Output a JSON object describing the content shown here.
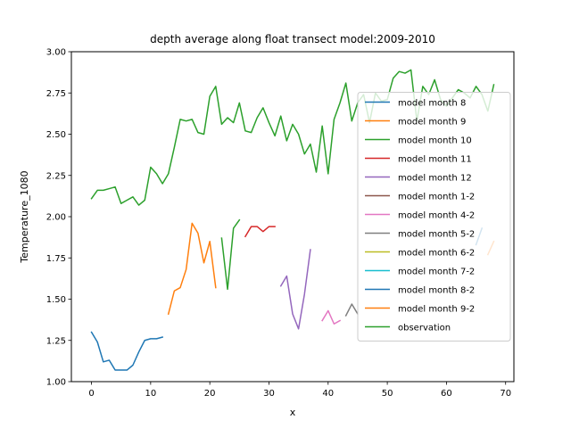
{
  "chart_data": {
    "type": "line",
    "title": "depth average along float transect model:2009-2010",
    "xlabel": "x",
    "ylabel": "Temperature_1080",
    "xlim": [
      -3.4,
      71.4
    ],
    "ylim": [
      1.0,
      3.0
    ],
    "xticks": [
      0,
      10,
      20,
      30,
      40,
      50,
      60,
      70
    ],
    "yticks": [
      1.0,
      1.25,
      1.5,
      1.75,
      2.0,
      2.25,
      2.5,
      2.75,
      3.0
    ],
    "ytick_labels": [
      "1.00",
      "1.25",
      "1.50",
      "1.75",
      "2.00",
      "2.25",
      "2.50",
      "2.75",
      "3.00"
    ],
    "grid": false,
    "legend_position": "center-right",
    "series": [
      {
        "name": "model month 8",
        "color": "#1f77b4",
        "x": [
          0,
          1,
          2,
          3,
          4,
          5,
          6,
          7,
          8,
          9,
          10,
          11,
          12
        ],
        "y": [
          1.3,
          1.24,
          1.12,
          1.13,
          1.07,
          1.07,
          1.07,
          1.1,
          1.18,
          1.25,
          1.26,
          1.26,
          1.27
        ]
      },
      {
        "name": "model month 9",
        "color": "#ff7f0e",
        "x": [
          13,
          14,
          15,
          16,
          17,
          18,
          19,
          20,
          21
        ],
        "y": [
          1.41,
          1.55,
          1.57,
          1.68,
          1.96,
          1.9,
          1.72,
          1.85,
          1.57
        ]
      },
      {
        "name": "model month 10",
        "color": "#2ca02c",
        "x": [
          22,
          23,
          24,
          25
        ],
        "y": [
          1.87,
          1.56,
          1.93,
          1.98
        ]
      },
      {
        "name": "model month 11",
        "color": "#d62728",
        "x": [
          26,
          27,
          28,
          29,
          30,
          31
        ],
        "y": [
          1.88,
          1.94,
          1.94,
          1.91,
          1.94,
          1.94
        ]
      },
      {
        "name": "model month 12",
        "color": "#9467bd",
        "x": [
          32,
          33,
          34,
          35,
          36,
          37
        ],
        "y": [
          1.58,
          1.64,
          1.41,
          1.32,
          1.53,
          1.8
        ]
      },
      {
        "name": "model month 1-2",
        "color": "#8c564b",
        "x": [],
        "y": []
      },
      {
        "name": "model month 4-2",
        "color": "#e377c2",
        "x": [
          39,
          40,
          41,
          42
        ],
        "y": [
          1.37,
          1.43,
          1.35,
          1.37
        ]
      },
      {
        "name": "model month 5-2",
        "color": "#7f7f7f",
        "x": [
          43,
          44,
          45
        ],
        "y": [
          1.4,
          1.47,
          1.41
        ]
      },
      {
        "name": "model month 6-2",
        "color": "#bcbd22",
        "x": [],
        "y": []
      },
      {
        "name": "model month 7-2",
        "color": "#17becf",
        "x": [],
        "y": []
      },
      {
        "name": "model month 8-2",
        "color": "#1f77b4",
        "x": [
          65,
          66
        ],
        "y": [
          1.83,
          1.93
        ]
      },
      {
        "name": "model month 9-2",
        "color": "#ff7f0e",
        "x": [
          67,
          68
        ],
        "y": [
          1.77,
          1.85
        ]
      },
      {
        "name": "observation",
        "color": "#2ca02c",
        "x": [
          0,
          1,
          2,
          3,
          4,
          5,
          6,
          7,
          8,
          9,
          10,
          11,
          12,
          13,
          14,
          15,
          16,
          17,
          18,
          19,
          20,
          21,
          22,
          23,
          24,
          25,
          26,
          27,
          28,
          29,
          30,
          31,
          32,
          33,
          34,
          35,
          36,
          37,
          38,
          39,
          40,
          41,
          42,
          43,
          44,
          45,
          46,
          47,
          48,
          49,
          50,
          51,
          52,
          53,
          54,
          55,
          56,
          57,
          58,
          59,
          60,
          61,
          62,
          63,
          64,
          65,
          66,
          67,
          68
        ],
        "y": [
          2.11,
          2.16,
          2.16,
          2.17,
          2.18,
          2.08,
          2.1,
          2.12,
          2.07,
          2.1,
          2.3,
          2.26,
          2.2,
          2.26,
          2.42,
          2.59,
          2.58,
          2.59,
          2.51,
          2.5,
          2.73,
          2.79,
          2.56,
          2.6,
          2.57,
          2.69,
          2.52,
          2.51,
          2.6,
          2.66,
          2.57,
          2.49,
          2.61,
          2.46,
          2.56,
          2.5,
          2.38,
          2.44,
          2.27,
          2.55,
          2.26,
          2.59,
          2.69,
          2.81,
          2.58,
          2.69,
          2.74,
          2.57,
          2.75,
          2.7,
          2.71,
          2.84,
          2.88,
          2.87,
          2.89,
          2.58,
          2.79,
          2.74,
          2.83,
          2.71,
          2.67,
          2.72,
          2.77,
          2.75,
          2.72,
          2.79,
          2.74,
          2.64,
          2.8
        ]
      }
    ]
  }
}
